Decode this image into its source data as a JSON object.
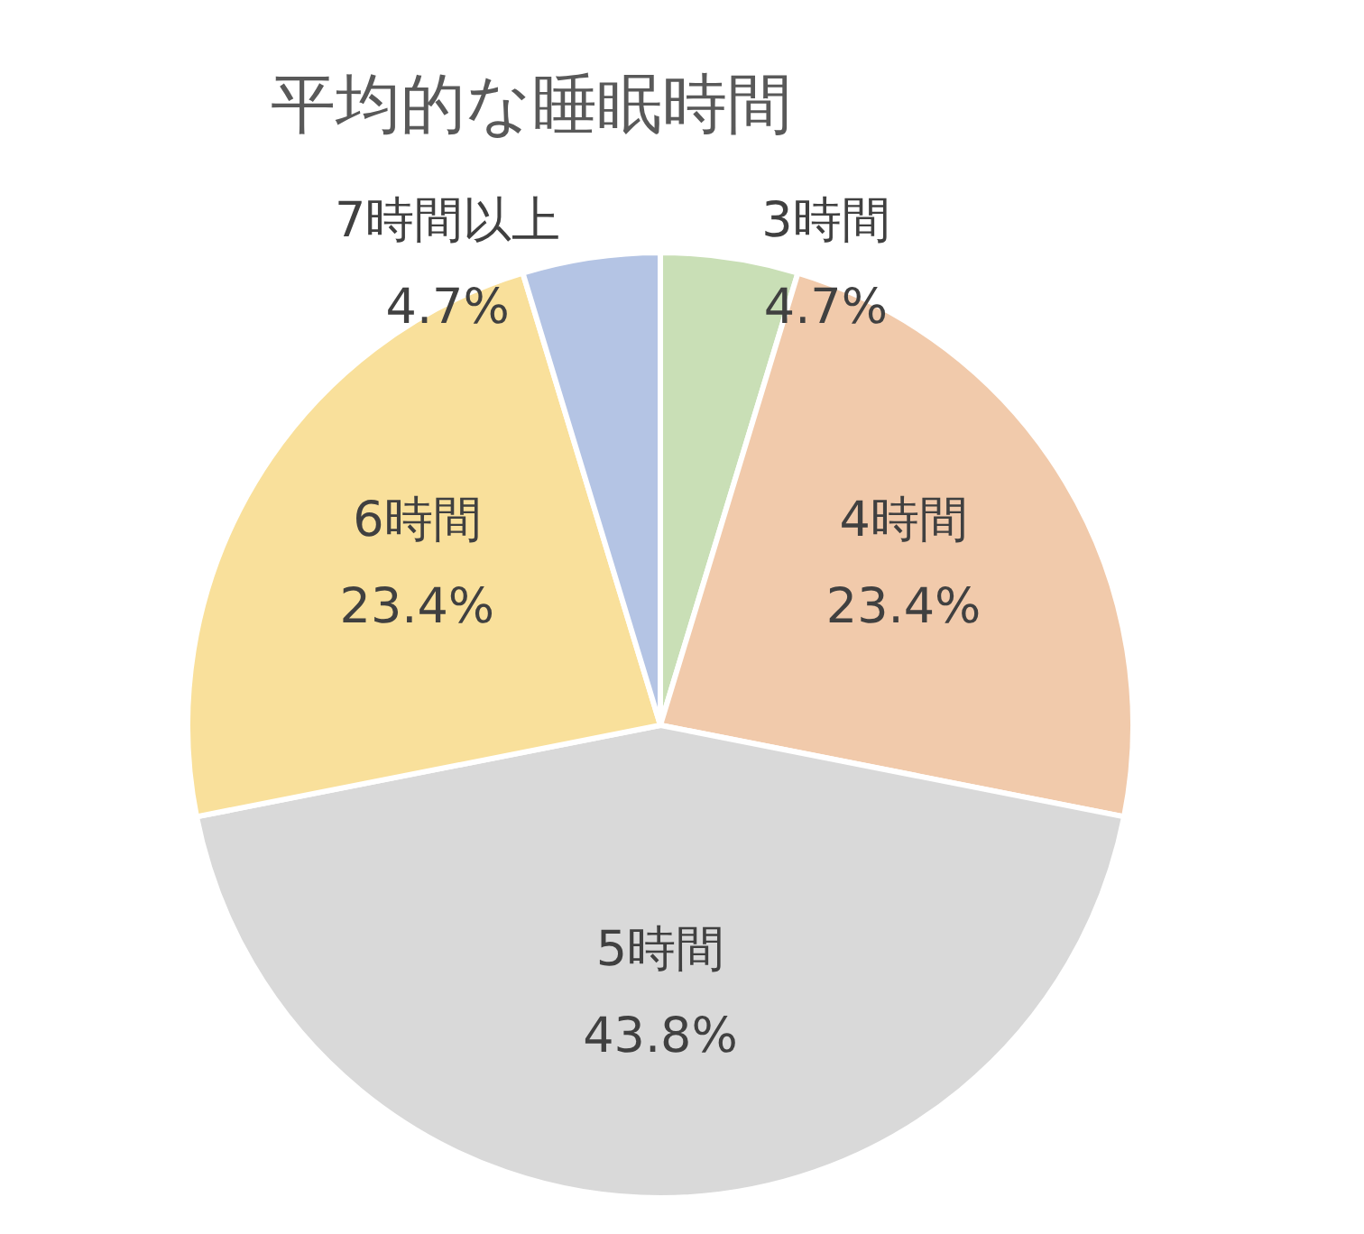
{
  "chart_data": {
    "type": "pie",
    "title": "平均的な睡眠時間",
    "categories": [
      "3時間",
      "4時間",
      "5時間",
      "6時間",
      "7時間以上"
    ],
    "values": [
      4.7,
      23.4,
      43.8,
      23.4,
      4.7
    ],
    "value_labels": [
      "4.7%",
      "23.4%",
      "43.8%",
      "23.4%",
      "4.7%"
    ],
    "colors": [
      "#c9dfb6",
      "#f1caab",
      "#d9d9d9",
      "#f9e09b",
      "#b4c4e4"
    ]
  }
}
